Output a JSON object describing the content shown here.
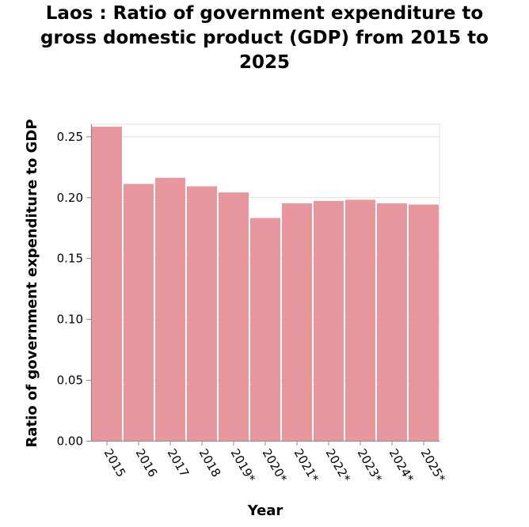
{
  "chart_data": {
    "type": "bar",
    "title_lines": [
      "Laos : Ratio of government expenditure to",
      "gross domestic product (GDP) from 2015 to",
      "2025"
    ],
    "xlabel": "Year",
    "ylabel": "Ratio of government expenditure to GDP",
    "categories": [
      "2015",
      "2016",
      "2017",
      "2018",
      "2019*",
      "2020*",
      "2021*",
      "2022*",
      "2023*",
      "2024*",
      "2025*"
    ],
    "values": [
      0.258,
      0.211,
      0.216,
      0.209,
      0.204,
      0.183,
      0.195,
      0.197,
      0.198,
      0.195,
      0.194
    ],
    "ylim": [
      0,
      0.26
    ],
    "yticks": [
      "0.00",
      "0.05",
      "0.10",
      "0.15",
      "0.20",
      "0.25"
    ],
    "grid": true,
    "bar_color": "#e8979f",
    "grid_color": "#dddddd",
    "axis_color": "#888888"
  }
}
